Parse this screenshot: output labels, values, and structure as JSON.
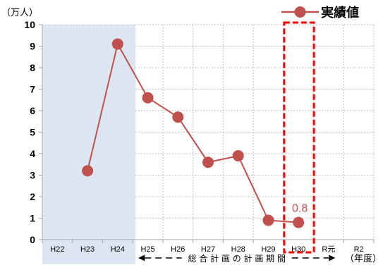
{
  "chart_data": {
    "type": "line",
    "y_unit": "（万人）",
    "x_unit": "（年度）",
    "categories": [
      "H22",
      "H23",
      "H24",
      "H25",
      "H26",
      "H27",
      "H28",
      "H29",
      "H30",
      "R元",
      "R2"
    ],
    "series": [
      {
        "name": "実績値",
        "values": [
          null,
          3.2,
          9.1,
          6.6,
          5.7,
          3.6,
          3.9,
          0.9,
          0.8,
          null,
          null
        ]
      }
    ],
    "ylim": [
      0,
      10
    ],
    "yticks": [
      0,
      1,
      2,
      3,
      4,
      5,
      6,
      7,
      8,
      9,
      10
    ],
    "grid": true,
    "legend": "top-right",
    "data_labels": [
      {
        "category": "H30",
        "text": "0.8"
      }
    ],
    "shaded_categories": [
      "H22",
      "H23",
      "H24"
    ],
    "highlighted_category": "H30",
    "period_annotation": {
      "text": "総 合 計 画 の 計 画 期 間",
      "from": "H25",
      "to": "R2"
    }
  },
  "colors": {
    "series": "#c0504d",
    "shade": "#dce6f2",
    "highlight": "#ff0000",
    "grid": "#bfbfbf",
    "axis": "#a6a6a6"
  }
}
